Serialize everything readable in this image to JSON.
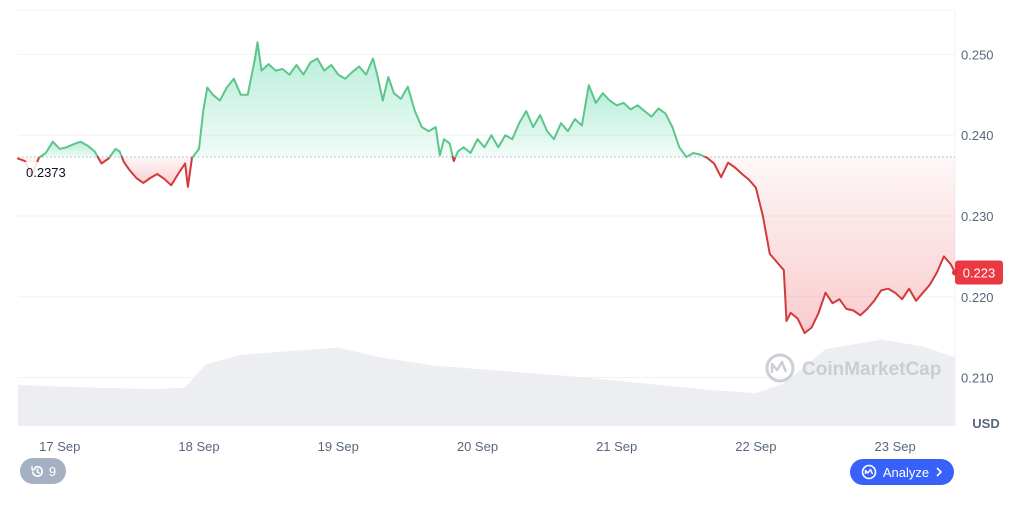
{
  "chart_data": {
    "type": "line",
    "unit": "USD",
    "reference_value": 0.2373,
    "reference_label": "0.2373",
    "current_value": 0.223,
    "current_label": "0.223",
    "ylim": [
      0.204,
      0.2555
    ],
    "yticks": [
      {
        "value": 0.25,
        "label": "0.250"
      },
      {
        "value": 0.24,
        "label": "0.240"
      },
      {
        "value": 0.23,
        "label": "0.230"
      },
      {
        "value": 0.22,
        "label": "0.220"
      },
      {
        "value": 0.21,
        "label": "0.210"
      }
    ],
    "xlim": [
      17.0,
      23.73
    ],
    "xticks": [
      {
        "value": 17.3,
        "label": "17 Sep"
      },
      {
        "value": 18.3,
        "label": "18 Sep"
      },
      {
        "value": 19.3,
        "label": "19 Sep"
      },
      {
        "value": 20.3,
        "label": "20 Sep"
      },
      {
        "value": 21.3,
        "label": "21 Sep"
      },
      {
        "value": 22.3,
        "label": "22 Sep"
      },
      {
        "value": 23.3,
        "label": "23 Sep"
      }
    ],
    "colors": {
      "up": "#16c784",
      "up_line": "#5cc689",
      "down": "#ea3943",
      "down_line": "#d33a3a",
      "grid": "#eff2f5",
      "volume": "#eceef1"
    },
    "grid": true,
    "series": [
      {
        "values": [
          [
            17.0,
            0.2371
          ],
          [
            17.05,
            0.2368
          ],
          [
            17.1,
            0.235
          ],
          [
            17.15,
            0.2372
          ],
          [
            17.2,
            0.2378
          ],
          [
            17.25,
            0.2392
          ],
          [
            17.3,
            0.2383
          ],
          [
            17.35,
            0.2385
          ],
          [
            17.4,
            0.2389
          ],
          [
            17.45,
            0.2392
          ],
          [
            17.5,
            0.2387
          ],
          [
            17.55,
            0.238
          ],
          [
            17.6,
            0.2365
          ],
          [
            17.65,
            0.2371
          ],
          [
            17.7,
            0.2383
          ],
          [
            17.73,
            0.238
          ],
          [
            17.76,
            0.2367
          ],
          [
            17.8,
            0.2357
          ],
          [
            17.85,
            0.2347
          ],
          [
            17.9,
            0.2341
          ],
          [
            17.95,
            0.2347
          ],
          [
            18.0,
            0.2352
          ],
          [
            18.05,
            0.2346
          ],
          [
            18.1,
            0.2338
          ],
          [
            18.15,
            0.2352
          ],
          [
            18.2,
            0.2365
          ],
          [
            18.22,
            0.2336
          ],
          [
            18.25,
            0.2372
          ],
          [
            18.3,
            0.2383
          ],
          [
            18.33,
            0.243
          ],
          [
            18.36,
            0.2459
          ],
          [
            18.4,
            0.245
          ],
          [
            18.45,
            0.2443
          ],
          [
            18.5,
            0.2459
          ],
          [
            18.55,
            0.247
          ],
          [
            18.6,
            0.245
          ],
          [
            18.65,
            0.245
          ],
          [
            18.7,
            0.2493
          ],
          [
            18.72,
            0.2515
          ],
          [
            18.75,
            0.248
          ],
          [
            18.8,
            0.2488
          ],
          [
            18.85,
            0.248
          ],
          [
            18.9,
            0.2482
          ],
          [
            18.95,
            0.2475
          ],
          [
            19.0,
            0.2487
          ],
          [
            19.05,
            0.2475
          ],
          [
            19.1,
            0.249
          ],
          [
            19.15,
            0.2495
          ],
          [
            19.2,
            0.248
          ],
          [
            19.25,
            0.2487
          ],
          [
            19.3,
            0.2475
          ],
          [
            19.35,
            0.247
          ],
          [
            19.4,
            0.2478
          ],
          [
            19.45,
            0.2485
          ],
          [
            19.5,
            0.2475
          ],
          [
            19.55,
            0.2495
          ],
          [
            19.58,
            0.2475
          ],
          [
            19.62,
            0.2443
          ],
          [
            19.66,
            0.2472
          ],
          [
            19.7,
            0.2452
          ],
          [
            19.75,
            0.2445
          ],
          [
            19.8,
            0.246
          ],
          [
            19.85,
            0.243
          ],
          [
            19.9,
            0.241
          ],
          [
            19.95,
            0.2405
          ],
          [
            20.0,
            0.241
          ],
          [
            20.03,
            0.2375
          ],
          [
            20.06,
            0.2395
          ],
          [
            20.1,
            0.239
          ],
          [
            20.13,
            0.2368
          ],
          [
            20.16,
            0.238
          ],
          [
            20.2,
            0.2385
          ],
          [
            20.25,
            0.2378
          ],
          [
            20.3,
            0.2395
          ],
          [
            20.35,
            0.2385
          ],
          [
            20.4,
            0.24
          ],
          [
            20.45,
            0.2385
          ],
          [
            20.5,
            0.24
          ],
          [
            20.55,
            0.2395
          ],
          [
            20.6,
            0.2415
          ],
          [
            20.65,
            0.243
          ],
          [
            20.7,
            0.241
          ],
          [
            20.75,
            0.2425
          ],
          [
            20.8,
            0.2405
          ],
          [
            20.85,
            0.2395
          ],
          [
            20.9,
            0.2415
          ],
          [
            20.95,
            0.2405
          ],
          [
            21.0,
            0.242
          ],
          [
            21.05,
            0.2412
          ],
          [
            21.1,
            0.2462
          ],
          [
            21.15,
            0.244
          ],
          [
            21.2,
            0.2452
          ],
          [
            21.25,
            0.2443
          ],
          [
            21.3,
            0.2437
          ],
          [
            21.35,
            0.244
          ],
          [
            21.4,
            0.2432
          ],
          [
            21.45,
            0.2437
          ],
          [
            21.5,
            0.243
          ],
          [
            21.55,
            0.2423
          ],
          [
            21.6,
            0.2433
          ],
          [
            21.65,
            0.2427
          ],
          [
            21.7,
            0.241
          ],
          [
            21.75,
            0.2385
          ],
          [
            21.8,
            0.2373
          ],
          [
            21.85,
            0.2378
          ],
          [
            21.9,
            0.2376
          ],
          [
            21.95,
            0.2372
          ],
          [
            22.0,
            0.2365
          ],
          [
            22.05,
            0.2348
          ],
          [
            22.1,
            0.2366
          ],
          [
            22.15,
            0.236
          ],
          [
            22.2,
            0.2352
          ],
          [
            22.25,
            0.2345
          ],
          [
            22.3,
            0.2335
          ],
          [
            22.35,
            0.23
          ],
          [
            22.4,
            0.2253
          ],
          [
            22.45,
            0.2243
          ],
          [
            22.5,
            0.2233
          ],
          [
            22.52,
            0.217
          ],
          [
            22.55,
            0.218
          ],
          [
            22.6,
            0.2173
          ],
          [
            22.65,
            0.2155
          ],
          [
            22.7,
            0.2162
          ],
          [
            22.75,
            0.218
          ],
          [
            22.8,
            0.2205
          ],
          [
            22.85,
            0.2192
          ],
          [
            22.9,
            0.2197
          ],
          [
            22.95,
            0.2185
          ],
          [
            23.0,
            0.2183
          ],
          [
            23.05,
            0.2177
          ],
          [
            23.1,
            0.2185
          ],
          [
            23.15,
            0.2195
          ],
          [
            23.2,
            0.2208
          ],
          [
            23.25,
            0.221
          ],
          [
            23.3,
            0.2205
          ],
          [
            23.35,
            0.2197
          ],
          [
            23.4,
            0.221
          ],
          [
            23.45,
            0.2195
          ],
          [
            23.5,
            0.2205
          ],
          [
            23.55,
            0.2215
          ],
          [
            23.6,
            0.223
          ],
          [
            23.65,
            0.225
          ],
          [
            23.7,
            0.224
          ],
          [
            23.73,
            0.223
          ]
        ]
      }
    ],
    "volume": [
      [
        17.0,
        0.3
      ],
      [
        17.5,
        0.28
      ],
      [
        18.0,
        0.27
      ],
      [
        18.2,
        0.28
      ],
      [
        18.35,
        0.45
      ],
      [
        18.6,
        0.52
      ],
      [
        19.0,
        0.55
      ],
      [
        19.3,
        0.57
      ],
      [
        19.6,
        0.5
      ],
      [
        20.0,
        0.44
      ],
      [
        20.5,
        0.4
      ],
      [
        21.0,
        0.36
      ],
      [
        21.5,
        0.31
      ],
      [
        22.0,
        0.26
      ],
      [
        22.3,
        0.24
      ],
      [
        22.5,
        0.31
      ],
      [
        22.8,
        0.56
      ],
      [
        23.2,
        0.63
      ],
      [
        23.5,
        0.58
      ],
      [
        23.73,
        0.5
      ]
    ]
  },
  "watermark": "CoinMarketCap",
  "history_button": {
    "label": "9",
    "icon": "history-icon"
  },
  "analyze_button": {
    "label": "Analyze",
    "icon": "analyze-icon"
  }
}
